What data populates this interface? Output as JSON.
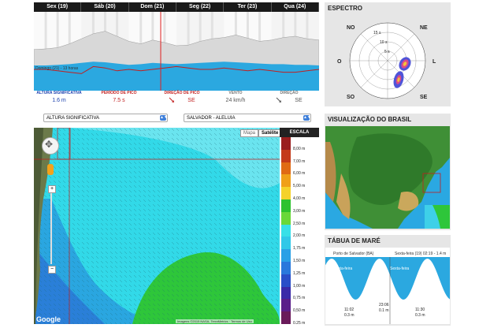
{
  "days": [
    "Sex (19)",
    "Sáb (20)",
    "Dom (21)",
    "Seg (22)",
    "Ter (23)",
    "Qua (24)"
  ],
  "chart_data": {
    "type": "area",
    "x": [
      0,
      1,
      2,
      3,
      4,
      5,
      6,
      7,
      8,
      9,
      10,
      11,
      12,
      13,
      14,
      15,
      16,
      17,
      18,
      19,
      20,
      21,
      22,
      23,
      24
    ],
    "series": [
      {
        "values": [
          1.5,
          1.5,
          1.6,
          1.7,
          1.9,
          2.1,
          2.0,
          1.8,
          1.6,
          1.7,
          1.9,
          1.8,
          1.7,
          1.8,
          1.9,
          2.0,
          2.1,
          2.0,
          1.9,
          1.8,
          1.7,
          1.7,
          1.6,
          1.6,
          1.5
        ]
      },
      {
        "values": [
          0.9,
          1.0,
          1.2,
          1.8,
          2.6,
          3.4,
          3.8,
          3.0,
          2.2,
          1.8,
          2.4,
          2.0,
          1.5,
          1.6,
          2.2,
          2.6,
          2.8,
          3.2,
          2.7,
          2.2,
          2.4,
          2.8,
          3.0,
          2.6,
          2.4
        ]
      },
      {
        "values": [
          7.5,
          7.5,
          7.0,
          6.5,
          6.0,
          8.5,
          8.0,
          7.0,
          7.5,
          7.0,
          7.5,
          8.0,
          8.5,
          8.0,
          7.5,
          7.5,
          8.0,
          7.5,
          7.0,
          7.5,
          7.0,
          6.5,
          6.5,
          7.0,
          7.5
        ]
      }
    ],
    "annotations": [
      "Domingo (21) - 13 horas"
    ]
  },
  "metrics": [
    {
      "label": "ALTURA SIGNIFICATIVA",
      "value": "1.6 m",
      "label_color": "#1a3fae",
      "value_color": "#1a3fae"
    },
    {
      "label": "PERÍODO DE PICO",
      "value": "7.5 s",
      "label_color": "#c21f1f",
      "value_color": "#c21f1f"
    },
    {
      "label": "DIREÇÃO DE PICO",
      "value": "SE",
      "label_color": "#c21f1f",
      "value_color": "#c21f1f"
    },
    {
      "label": "VENTO",
      "value": "24 km/h",
      "label_color": "#777777",
      "value_color": "#555555"
    },
    {
      "label": "DIREÇÃO",
      "value": "SE",
      "label_color": "#777777",
      "value_color": "#555555"
    }
  ],
  "selects": {
    "variable": "ALTURA SIGNIFICATIVA",
    "location": "SALVADOR - ALELUIA"
  },
  "map": {
    "toggle": [
      "Mapa",
      "Satélite"
    ],
    "google": "Google",
    "attribution": "Imagens ©2015 NASA, TerraMetrics · Termos de Uso"
  },
  "scale": {
    "title": "ESCALA",
    "labels": [
      "8,00 m",
      "7,00 m",
      "6,00 m",
      "5,00 m",
      "4,00 m",
      "3,00 m",
      "2,50 m",
      "2,00 m",
      "1,75 m",
      "1,50 m",
      "1,25 m",
      "1,00 m",
      "0,75 m",
      "0,50 m",
      "0,25 m"
    ],
    "colors": [
      "#9a1e1e",
      "#c43a1a",
      "#e06a14",
      "#f0a018",
      "#f5d22a",
      "#2ec22e",
      "#6ad838",
      "#38e0e8",
      "#30c8e8",
      "#2aa0e6",
      "#2a78dc",
      "#2a4ec8",
      "#3a2aa8",
      "#5a1e8a",
      "#6a1a5a"
    ]
  },
  "spectrum": {
    "title": "ESPECTRO",
    "dirs": [
      "NO",
      "NE",
      "O",
      "L",
      "SO",
      "SE"
    ],
    "rings": [
      "15 s",
      "10 s",
      "5 s"
    ]
  },
  "brasil": {
    "title": "VISUALIZAÇÃO DO BRASIL"
  },
  "tide": {
    "title": "TÁBUA DE MARÉ",
    "station": "Porto de Salvador (BA)",
    "date_label": "Sexta-feira (19) 02:19 - 1.4 m",
    "days": [
      "Quinta-feira",
      "Sexta-feira"
    ],
    "lows": [
      {
        "time": "11:02",
        "height": "0.3 m"
      },
      {
        "time": "23:06",
        "height": "0.1 m"
      },
      {
        "time": "11:30",
        "height": "0.3 m"
      }
    ]
  }
}
